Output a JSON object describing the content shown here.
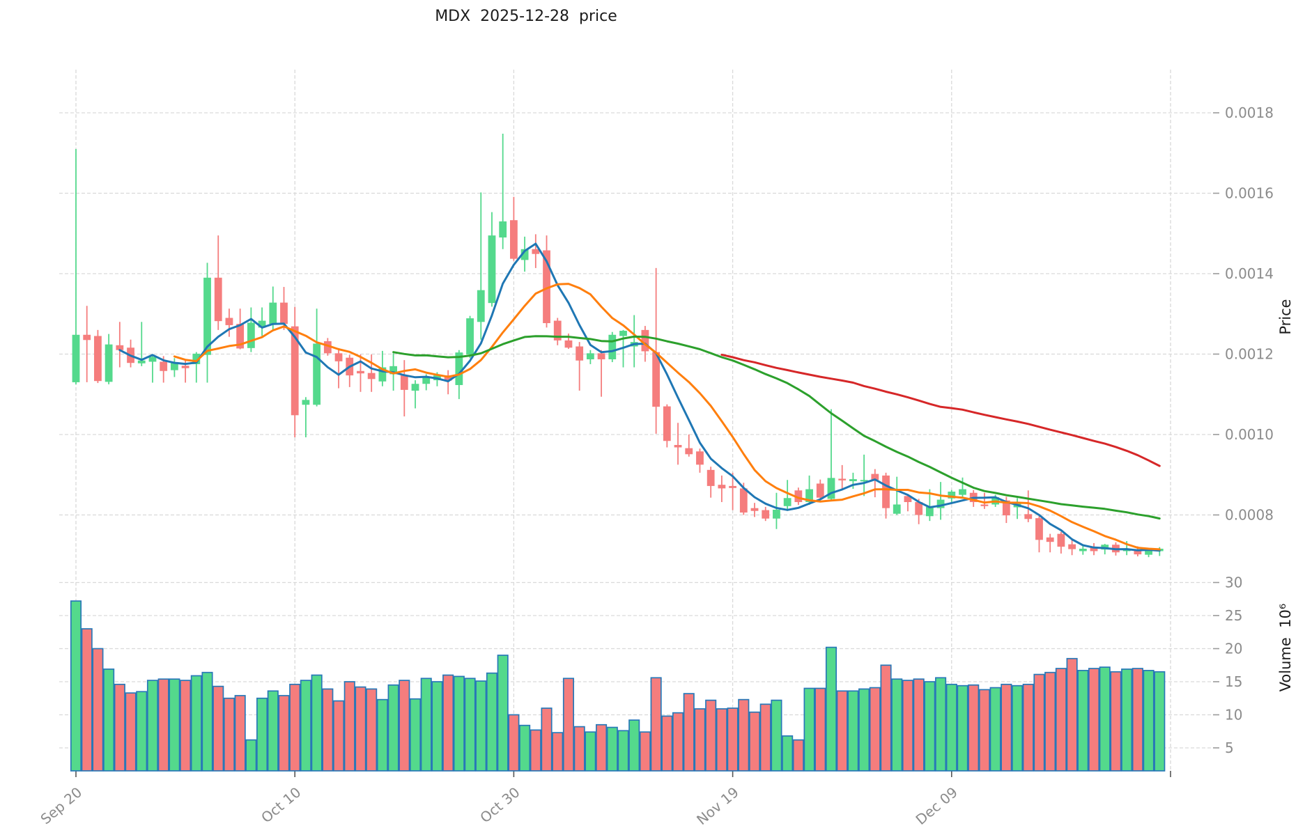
{
  "title": "MDX  2025-12-28  price",
  "axes": {
    "price_label": "Price",
    "volume_label": "Volume  10⁶",
    "price_ticks": [
      0.0008,
      0.001,
      0.0012,
      0.0014,
      0.0016,
      0.0018
    ],
    "volume_ticks": [
      5,
      10,
      15,
      20,
      25,
      30
    ],
    "x_ticks": [
      {
        "day": 0,
        "label": "Sep 20"
      },
      {
        "day": 20,
        "label": "Oct 10"
      },
      {
        "day": 40,
        "label": "Oct 30"
      },
      {
        "day": 60,
        "label": "Nov 19"
      },
      {
        "day": 80,
        "label": "Dec 09"
      },
      {
        "day": 100,
        "label": ""
      }
    ]
  },
  "style": {
    "up_color": "#54d98c",
    "down_color": "#f57d7d",
    "volume_edge_color": "#2878b8",
    "grid_color": "#d9d9d9",
    "tick_text_color": "#8b8b8b",
    "axis_text_color": "#1c1c1c",
    "background": "#ffffff"
  },
  "chart_data": {
    "type": "candlestick+volume",
    "title": "MDX  2025-12-28  price",
    "start_date": "2025-09-20",
    "end_date": "2025-12-28",
    "x_unit": "daily candles",
    "price_axis_range": [
      0.00065,
      0.00191
    ],
    "volume_axis_range_millions": [
      1.5,
      32
    ],
    "grid": "dashed",
    "legend_position": "none",
    "price_scale": 1e-06,
    "volume_scale_millions": 1000000.0,
    "ohlcv_format": [
      "open_u",
      "high_u",
      "low_u",
      "close_u",
      "volume_M"
    ],
    "indicators": [
      {
        "name": "MA5",
        "window": 5,
        "color": "#1f77b4"
      },
      {
        "name": "MA10",
        "window": 10,
        "color": "#ff7f0e"
      },
      {
        "name": "MA30",
        "window": 30,
        "color": "#2ca02c"
      },
      {
        "name": "MA60",
        "window": 60,
        "color": "#d62728"
      }
    ],
    "ohlcv": [
      [
        1130,
        1710,
        1125,
        1248,
        27.2
      ],
      [
        1248,
        1320,
        1130,
        1235,
        23.0
      ],
      [
        1245,
        1260,
        1128,
        1133,
        20.0
      ],
      [
        1131,
        1250,
        1125,
        1224,
        16.9
      ],
      [
        1222,
        1280,
        1167,
        1210,
        14.6
      ],
      [
        1216,
        1236,
        1167,
        1178,
        13.3
      ],
      [
        1177,
        1280,
        1170,
        1184,
        13.5
      ],
      [
        1181,
        1200,
        1129,
        1193,
        15.2
      ],
      [
        1181,
        1195,
        1129,
        1158,
        15.4
      ],
      [
        1160,
        1190,
        1143,
        1178,
        15.4
      ],
      [
        1171,
        1185,
        1129,
        1165,
        15.2
      ],
      [
        1175,
        1205,
        1129,
        1201,
        15.9
      ],
      [
        1198,
        1427,
        1129,
        1390,
        16.4
      ],
      [
        1390,
        1495,
        1260,
        1282,
        14.3
      ],
      [
        1290,
        1313,
        1243,
        1272,
        12.5
      ],
      [
        1275,
        1313,
        1212,
        1214,
        12.9
      ],
      [
        1215,
        1316,
        1205,
        1278,
        6.2
      ],
      [
        1266,
        1316,
        1245,
        1283,
        12.5
      ],
      [
        1275,
        1368,
        1260,
        1328,
        13.6
      ],
      [
        1328,
        1367,
        1260,
        1275,
        12.9
      ],
      [
        1269,
        1317,
        993,
        1048,
        14.6
      ],
      [
        1074,
        1093,
        993,
        1086,
        15.2
      ],
      [
        1074,
        1313,
        1070,
        1226,
        16.0
      ],
      [
        1232,
        1240,
        1196,
        1202,
        13.9
      ],
      [
        1202,
        1215,
        1115,
        1182,
        12.1
      ],
      [
        1191,
        1198,
        1118,
        1147,
        15.0
      ],
      [
        1158,
        1199,
        1106,
        1152,
        14.2
      ],
      [
        1153,
        1199,
        1106,
        1138,
        13.9
      ],
      [
        1132,
        1208,
        1120,
        1167,
        12.3
      ],
      [
        1150,
        1202,
        1109,
        1170,
        14.5
      ],
      [
        1147,
        1185,
        1045,
        1111,
        15.2
      ],
      [
        1109,
        1135,
        1065,
        1126,
        12.4
      ],
      [
        1126,
        1150,
        1110,
        1144,
        15.5
      ],
      [
        1135,
        1155,
        1120,
        1147,
        15.0
      ],
      [
        1147,
        1160,
        1100,
        1134,
        16.0
      ],
      [
        1123,
        1210,
        1088,
        1204,
        15.8
      ],
      [
        1199,
        1295,
        1190,
        1289,
        15.5
      ],
      [
        1280,
        1602,
        1236,
        1359,
        15.1
      ],
      [
        1327,
        1553,
        1318,
        1495,
        16.3
      ],
      [
        1490,
        1748,
        1461,
        1530,
        19.0
      ],
      [
        1533,
        1591,
        1432,
        1437,
        10.0
      ],
      [
        1434,
        1492,
        1405,
        1461,
        8.4
      ],
      [
        1461,
        1498,
        1414,
        1449,
        7.7
      ],
      [
        1458,
        1495,
        1266,
        1277,
        11.0
      ],
      [
        1283,
        1290,
        1222,
        1234,
        7.3
      ],
      [
        1234,
        1251,
        1213,
        1216,
        15.5
      ],
      [
        1219,
        1230,
        1109,
        1184,
        8.2
      ],
      [
        1187,
        1210,
        1175,
        1202,
        7.4
      ],
      [
        1202,
        1210,
        1094,
        1187,
        8.5
      ],
      [
        1187,
        1255,
        1180,
        1248,
        8.1
      ],
      [
        1245,
        1260,
        1167,
        1258,
        7.6
      ],
      [
        1219,
        1297,
        1167,
        1230,
        9.2
      ],
      [
        1260,
        1270,
        1181,
        1207,
        7.4
      ],
      [
        1205,
        1414,
        1002,
        1069,
        15.6
      ],
      [
        1070,
        1075,
        968,
        984,
        9.8
      ],
      [
        974,
        1029,
        925,
        968,
        10.3
      ],
      [
        966,
        1000,
        945,
        951,
        13.2
      ],
      [
        958,
        965,
        905,
        925,
        10.9
      ],
      [
        912,
        920,
        843,
        872,
        12.2
      ],
      [
        875,
        898,
        832,
        866,
        10.9
      ],
      [
        872,
        905,
        812,
        867,
        11.0
      ],
      [
        866,
        880,
        800,
        806,
        12.3
      ],
      [
        817,
        830,
        795,
        810,
        10.4
      ],
      [
        812,
        820,
        785,
        791,
        11.6
      ],
      [
        791,
        855,
        765,
        813,
        12.2
      ],
      [
        822,
        887,
        810,
        842,
        6.8
      ],
      [
        861,
        868,
        825,
        832,
        6.2
      ],
      [
        832,
        898,
        825,
        864,
        14.0
      ],
      [
        878,
        888,
        836,
        843,
        14.0
      ],
      [
        840,
        1063,
        835,
        892,
        20.2
      ],
      [
        890,
        924,
        861,
        886,
        13.6
      ],
      [
        884,
        905,
        865,
        889,
        13.6
      ],
      [
        885,
        950,
        847,
        887,
        13.9
      ],
      [
        902,
        914,
        844,
        887,
        14.1
      ],
      [
        898,
        905,
        791,
        817,
        17.5
      ],
      [
        803,
        895,
        800,
        826,
        15.4
      ],
      [
        847,
        852,
        809,
        832,
        15.2
      ],
      [
        832,
        840,
        777,
        800,
        15.4
      ],
      [
        797,
        864,
        785,
        820,
        15.0
      ],
      [
        817,
        882,
        788,
        838,
        15.6
      ],
      [
        841,
        862,
        830,
        858,
        14.6
      ],
      [
        850,
        893,
        845,
        864,
        14.4
      ],
      [
        855,
        862,
        820,
        832,
        14.5
      ],
      [
        826,
        855,
        815,
        822,
        13.8
      ],
      [
        826,
        850,
        820,
        844,
        14.1
      ],
      [
        836,
        845,
        780,
        799,
        14.6
      ],
      [
        819,
        842,
        790,
        828,
        14.4
      ],
      [
        802,
        861,
        782,
        790,
        14.6
      ],
      [
        792,
        798,
        707,
        738,
        16.1
      ],
      [
        744,
        753,
        707,
        733,
        16.4
      ],
      [
        753,
        758,
        704,
        721,
        17.0
      ],
      [
        727,
        738,
        700,
        715,
        18.5
      ],
      [
        710,
        722,
        701,
        716,
        16.7
      ],
      [
        721,
        730,
        700,
        710,
        17.0
      ],
      [
        714,
        728,
        702,
        726,
        17.2
      ],
      [
        726,
        732,
        699,
        707,
        16.5
      ],
      [
        710,
        735,
        700,
        716,
        16.9
      ],
      [
        714,
        722,
        697,
        702,
        17.0
      ],
      [
        701,
        718,
        695,
        715,
        16.7
      ],
      [
        710,
        720,
        698,
        716,
        16.5
      ]
    ]
  }
}
